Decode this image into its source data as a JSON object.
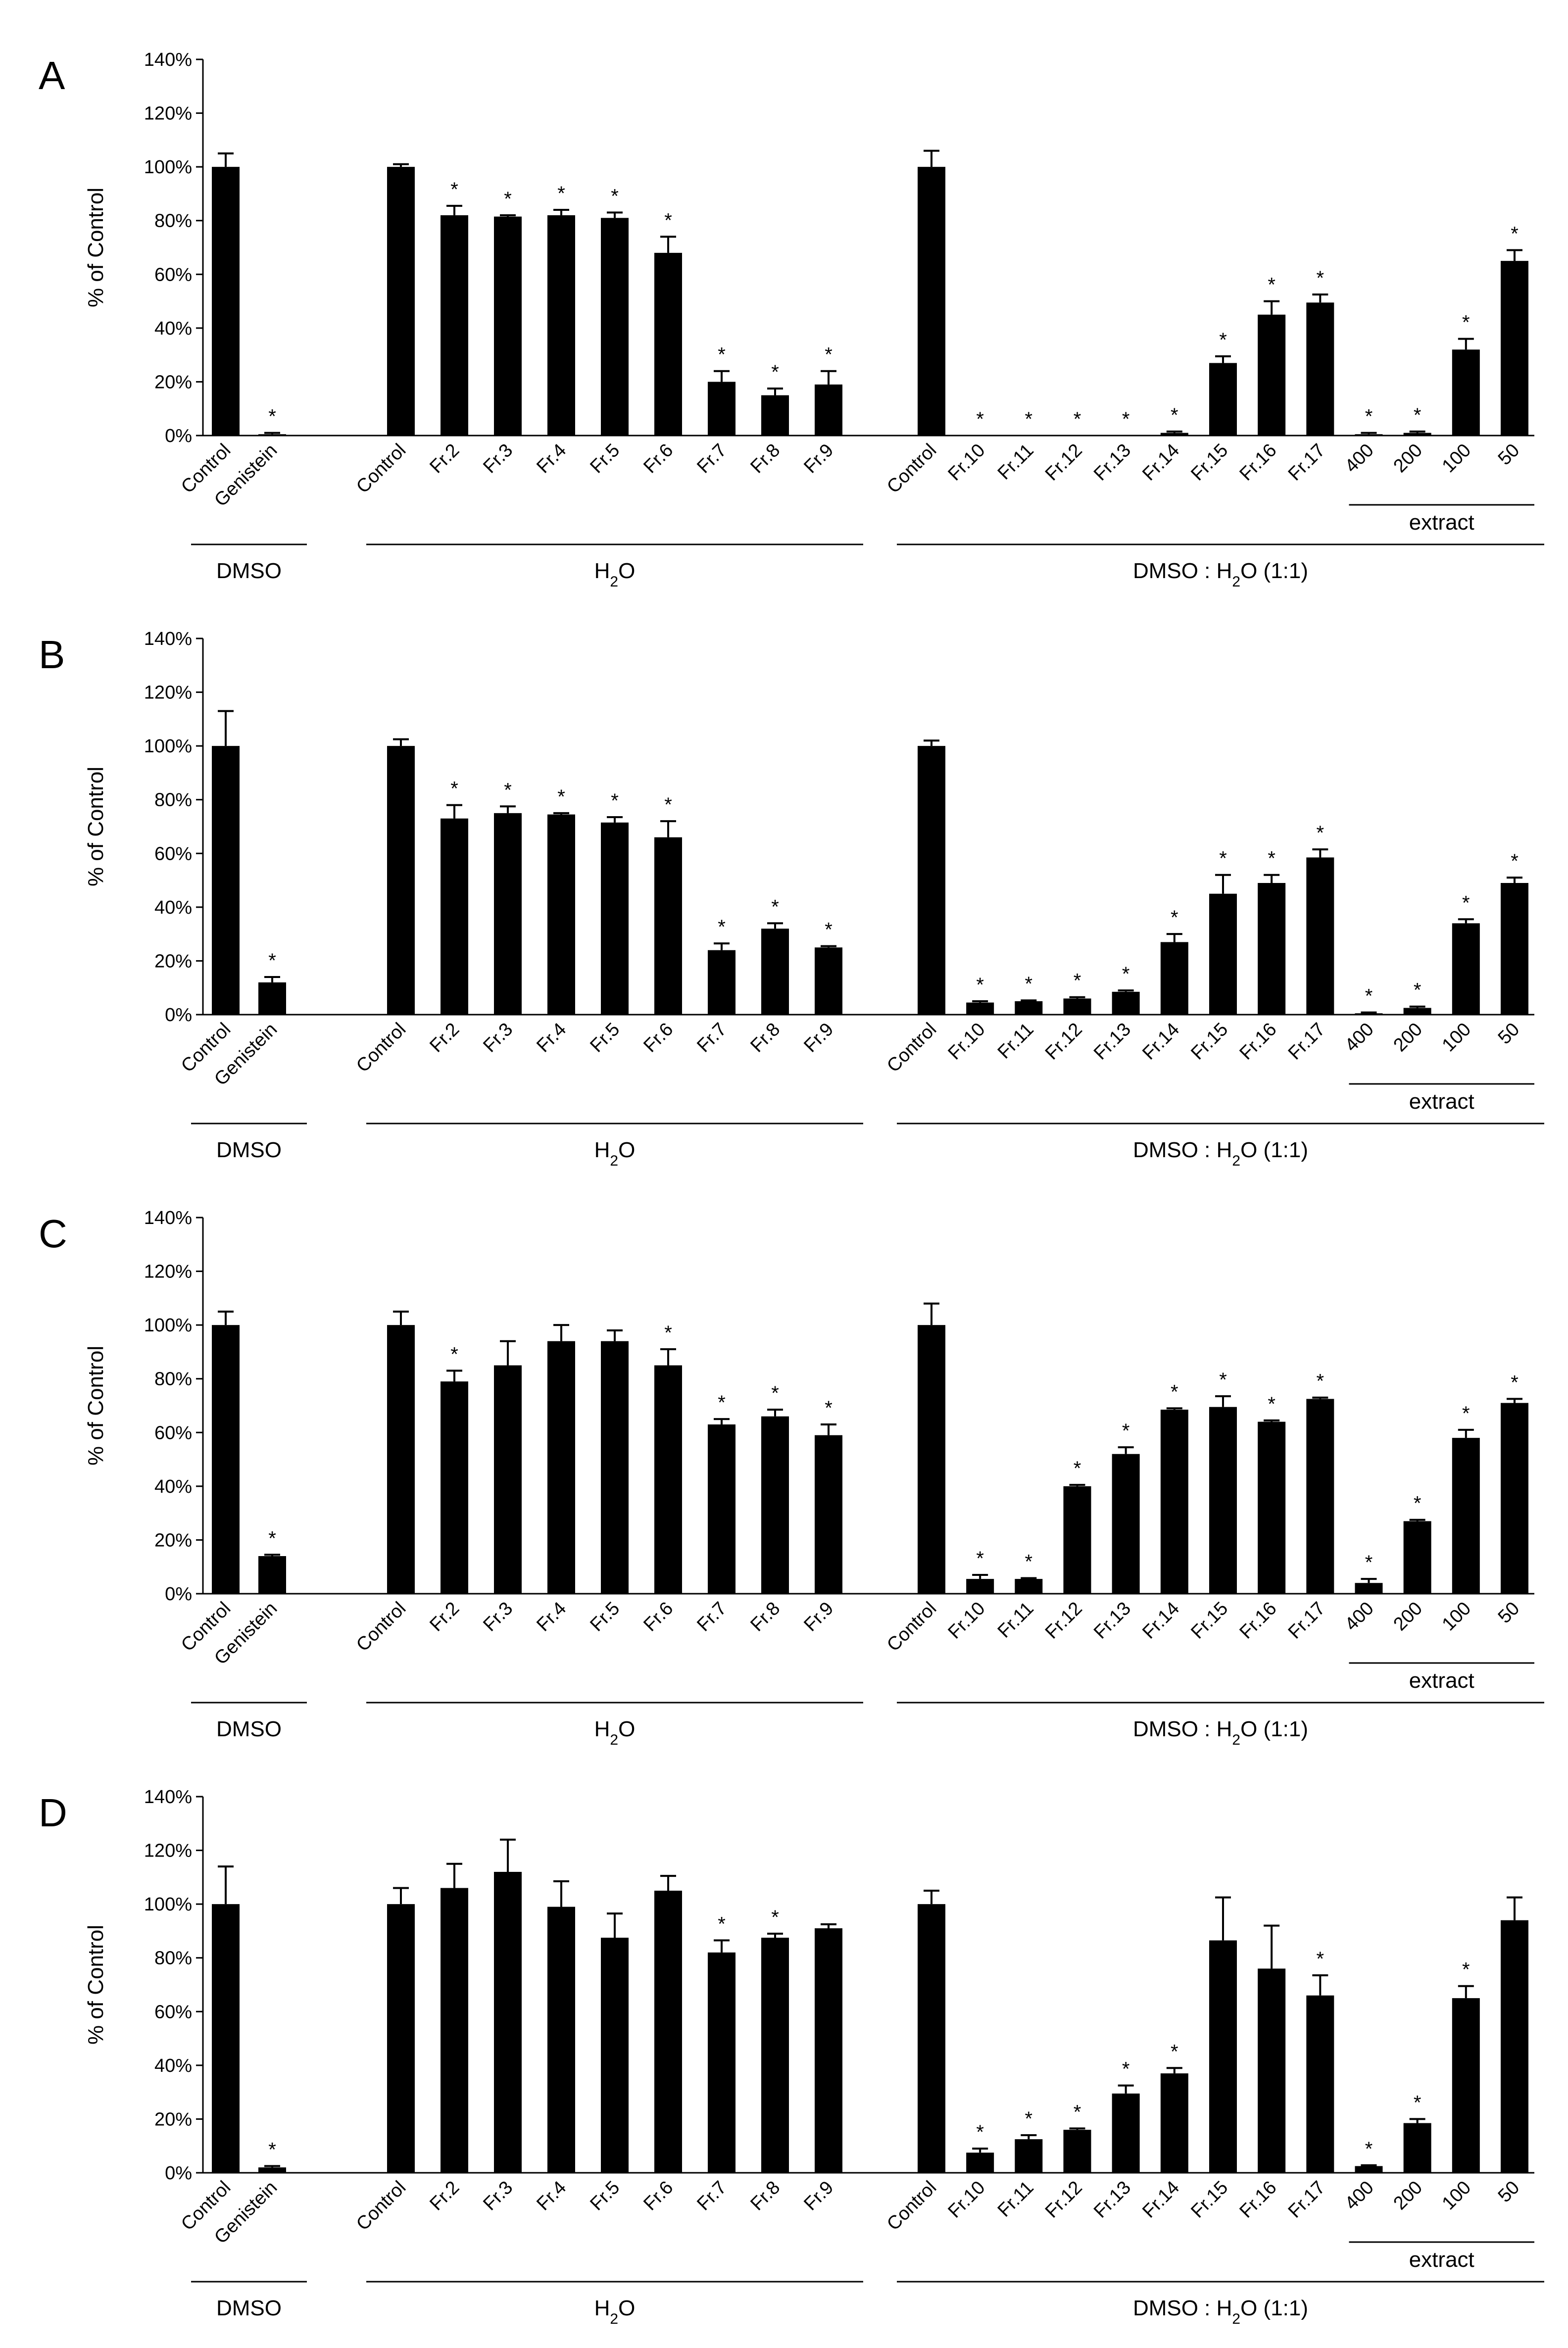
{
  "figure": {
    "ylabel": "% of Control",
    "y_ticks": [
      "0%",
      "20%",
      "40%",
      "60%",
      "80%",
      "100%",
      "120%",
      "140%"
    ],
    "categories": [
      "Control",
      "Genistein",
      "Control",
      "Fr.2",
      "Fr.3",
      "Fr.4",
      "Fr.5",
      "Fr.6",
      "Fr.7",
      "Fr.8",
      "Fr.9",
      "Control",
      "Fr.10",
      "Fr.11",
      "Fr.12",
      "Fr.13",
      "Fr.14",
      "Fr.15",
      "Fr.16",
      "Fr.17",
      "400",
      "200",
      "100",
      "50"
    ],
    "groups": [
      {
        "label": "DMSO",
        "start": 0,
        "end": 1
      },
      {
        "label": "H2O",
        "start": 2,
        "end": 10
      },
      {
        "label": "DMSO : H2O (1:1)",
        "start": 11,
        "end": 23
      }
    ],
    "subgroup": {
      "label": "extract",
      "start": 20,
      "end": 23
    },
    "significance_marker": "*"
  },
  "chart_data": [
    {
      "panel": "A",
      "type": "bar",
      "ylabel": "% of Control",
      "ylim": [
        0,
        140
      ],
      "values": [
        100,
        0.5,
        100,
        82,
        81.5,
        82,
        81,
        68,
        20,
        15,
        19,
        100,
        0,
        0,
        0,
        0,
        1,
        27,
        45,
        49.5,
        0.5,
        1,
        32,
        65
      ],
      "errors": [
        5,
        0.5,
        1,
        3.5,
        0.5,
        2,
        2,
        6,
        4,
        2.5,
        5,
        6,
        0,
        0,
        0,
        0,
        0.5,
        2.5,
        5,
        3,
        0.5,
        0.5,
        4,
        4
      ],
      "significant": [
        false,
        true,
        false,
        true,
        true,
        true,
        true,
        true,
        true,
        true,
        true,
        false,
        true,
        true,
        true,
        true,
        true,
        true,
        true,
        true,
        true,
        true,
        true,
        true
      ]
    },
    {
      "panel": "B",
      "type": "bar",
      "ylabel": "% of Control",
      "ylim": [
        0,
        140
      ],
      "values": [
        100,
        12,
        100,
        73,
        75,
        74.5,
        71.5,
        66,
        24,
        32,
        25,
        100,
        4.5,
        5,
        6,
        8.5,
        27,
        45,
        49,
        58.5,
        0.5,
        2.5,
        34,
        49
      ],
      "errors": [
        13,
        2,
        2.5,
        5,
        2.5,
        0.5,
        2,
        6,
        2.5,
        2,
        0.5,
        2,
        0.5,
        0.3,
        0.5,
        0.5,
        3,
        7,
        3,
        3,
        0.3,
        0.5,
        1.5,
        2
      ],
      "significant": [
        false,
        true,
        false,
        true,
        true,
        true,
        true,
        true,
        true,
        true,
        true,
        false,
        true,
        true,
        true,
        true,
        true,
        true,
        true,
        true,
        true,
        true,
        true,
        true
      ]
    },
    {
      "panel": "C",
      "type": "bar",
      "ylabel": "% of Control",
      "ylim": [
        0,
        140
      ],
      "values": [
        100,
        14,
        100,
        79,
        85,
        94,
        94,
        85,
        63,
        66,
        59,
        100,
        5.5,
        5.5,
        40,
        52,
        68.5,
        69.5,
        64,
        72.5,
        4,
        27,
        58,
        71
      ],
      "errors": [
        5,
        0.5,
        5,
        4,
        9,
        6,
        4,
        6,
        2,
        2.5,
        4,
        8,
        1.5,
        0.3,
        0.5,
        2.5,
        0.5,
        4,
        0.5,
        0.5,
        1.5,
        0.5,
        3,
        1.5
      ],
      "significant": [
        false,
        true,
        false,
        true,
        false,
        false,
        false,
        true,
        true,
        true,
        true,
        false,
        true,
        true,
        true,
        true,
        true,
        true,
        true,
        true,
        true,
        true,
        true,
        true
      ]
    },
    {
      "panel": "D",
      "type": "bar",
      "ylabel": "% of Control",
      "ylim": [
        0,
        140
      ],
      "values": [
        100,
        2,
        100,
        106,
        112,
        99,
        87.5,
        105,
        82,
        87.5,
        91,
        100,
        7.5,
        12.5,
        16,
        29.5,
        37,
        86.5,
        76,
        66,
        2.5,
        18.5,
        65,
        94
      ],
      "errors": [
        14,
        0.5,
        6,
        9,
        12,
        9.5,
        9,
        5.5,
        4.5,
        1.5,
        1.5,
        5,
        1.5,
        1.5,
        0.5,
        3,
        2,
        16,
        16,
        7.5,
        0.3,
        1.5,
        4.5,
        8.5
      ],
      "significant": [
        false,
        true,
        false,
        false,
        false,
        false,
        false,
        false,
        true,
        true,
        false,
        false,
        true,
        true,
        true,
        true,
        true,
        false,
        false,
        true,
        true,
        true,
        true,
        false
      ]
    }
  ]
}
